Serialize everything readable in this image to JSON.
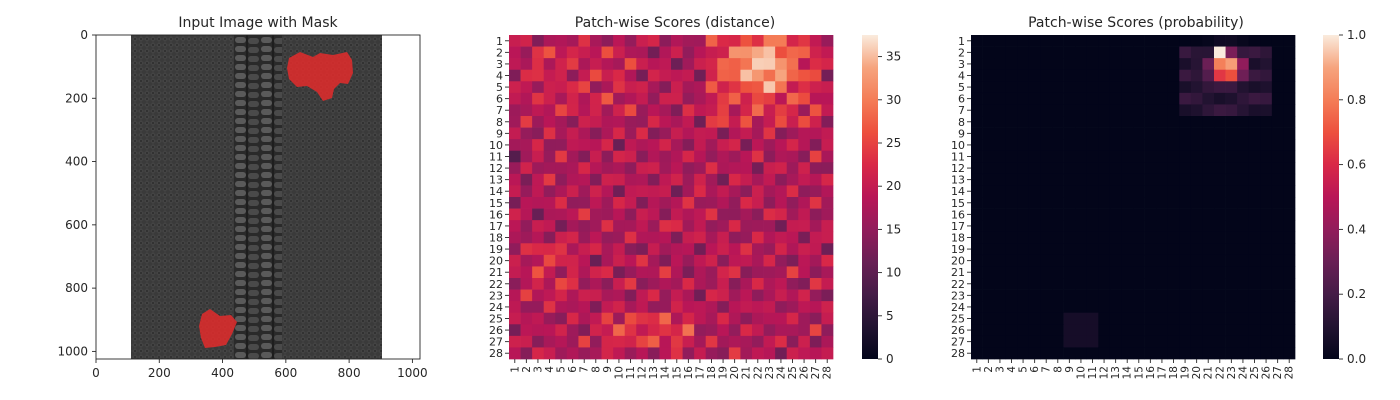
{
  "chart_data": [
    {
      "type": "image",
      "title": "Input Image with Mask",
      "xlim": [
        0,
        1024
      ],
      "ylim": [
        1024,
        0
      ],
      "xticks": [
        "0",
        "200",
        "400",
        "600",
        "800",
        "1000"
      ],
      "yticks": [
        "0",
        "200",
        "400",
        "600",
        "800",
        "1000"
      ],
      "image_content": "zipper",
      "mask_color": "#e32b2b"
    },
    {
      "type": "heatmap",
      "title": "Patch-wise Scores (distance)",
      "xticks": [
        "1",
        "2",
        "3",
        "4",
        "5",
        "6",
        "7",
        "8",
        "9",
        "10",
        "11",
        "12",
        "13",
        "14",
        "15",
        "16",
        "17",
        "18",
        "19",
        "20",
        "21",
        "22",
        "23",
        "24",
        "25",
        "26",
        "27",
        "28"
      ],
      "yticks": [
        "1",
        "2",
        "3",
        "4",
        "5",
        "6",
        "7",
        "8",
        "9",
        "10",
        "11",
        "12",
        "13",
        "14",
        "15",
        "16",
        "17",
        "18",
        "19",
        "20",
        "21",
        "22",
        "23",
        "24",
        "25",
        "26",
        "27",
        "28"
      ],
      "colorbar_ticks": [
        "0",
        "5",
        "10",
        "15",
        "20",
        "25",
        "30",
        "35"
      ],
      "vmin": 0,
      "vmax": 37.5
    },
    {
      "type": "heatmap",
      "title": "Patch-wise Scores (probability)",
      "xticks": [
        "1",
        "2",
        "3",
        "4",
        "5",
        "6",
        "7",
        "8",
        "9",
        "10",
        "11",
        "12",
        "13",
        "14",
        "15",
        "16",
        "17",
        "18",
        "19",
        "20",
        "21",
        "22",
        "23",
        "24",
        "25",
        "26",
        "27",
        "28"
      ],
      "yticks": [
        "1",
        "2",
        "3",
        "4",
        "5",
        "6",
        "7",
        "8",
        "9",
        "10",
        "11",
        "12",
        "13",
        "14",
        "15",
        "16",
        "17",
        "18",
        "19",
        "20",
        "21",
        "22",
        "23",
        "24",
        "25",
        "26",
        "27",
        "28"
      ],
      "colorbar_ticks": [
        "0.0",
        "0.2",
        "0.4",
        "0.6",
        "0.8",
        "1.0"
      ],
      "vmin": 0,
      "vmax": 1
    }
  ]
}
